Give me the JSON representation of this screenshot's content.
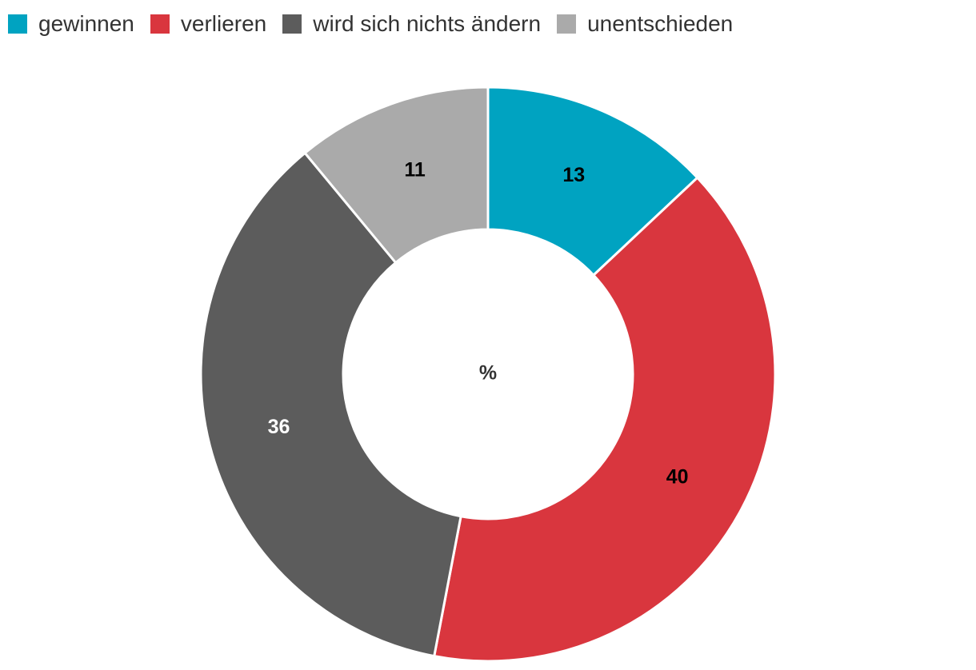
{
  "chart_data": {
    "type": "pie",
    "variant": "donut",
    "center_label": "%",
    "categories": [
      "gewinnen",
      "verlieren",
      "wird sich nichts ändern",
      "unentschieden"
    ],
    "values": [
      13,
      40,
      36,
      11
    ],
    "colors": [
      "#00a3c1",
      "#d9363e",
      "#5c5c5c",
      "#aaaaaa"
    ],
    "label_colors": [
      "#000000",
      "#000000",
      "#ffffff",
      "#000000"
    ],
    "legend_position": "top-left"
  }
}
